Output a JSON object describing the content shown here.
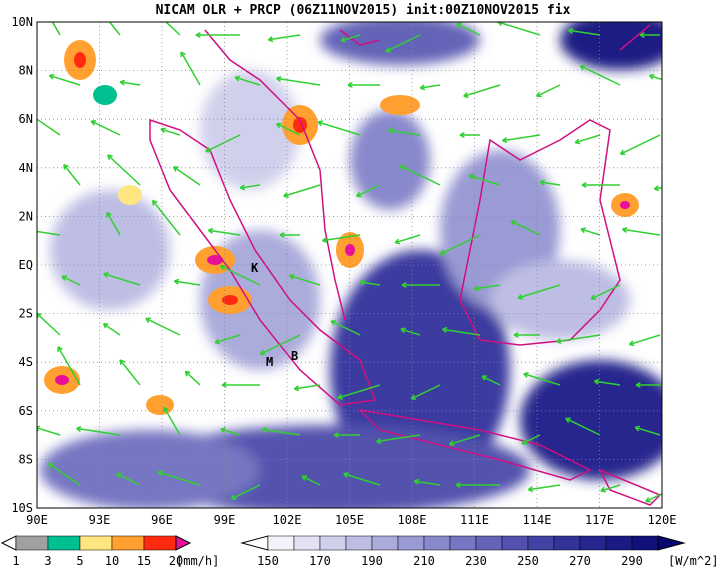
{
  "title": "NICAM OLR + PRCP (06Z11NOV2015) init:00Z10NOV2015 fix",
  "map": {
    "lat_labels": [
      "10N",
      "8N",
      "6N",
      "4N",
      "2N",
      "EQ",
      "2S",
      "4S",
      "6S",
      "8S",
      "10S"
    ],
    "lon_labels": [
      "90E",
      "93E",
      "96E",
      "99E",
      "102E",
      "105E",
      "108E",
      "111E",
      "114E",
      "117E",
      "120E"
    ],
    "places": [
      "K",
      "M",
      "B"
    ]
  },
  "precip_colorbar": {
    "unit": "[mm/h]",
    "labels": [
      1,
      3,
      5,
      10,
      15,
      20
    ],
    "colors": [
      "#ffffff",
      "#a0a0a0",
      "#00c090",
      "#ffe680",
      "#ffa030",
      "#ff2a10",
      "#e8109a"
    ]
  },
  "olr_colorbar": {
    "unit": "[W/m^2]",
    "labels": [
      150,
      170,
      190,
      210,
      230,
      250,
      270,
      290
    ],
    "colors": [
      "#ffffff",
      "#f2f2fa",
      "#e2e2f2",
      "#d0d0ec",
      "#bebee4",
      "#acacdc",
      "#9a9ad4",
      "#8888cc",
      "#7676c2",
      "#6464b8",
      "#5252ae",
      "#4242a4",
      "#33339a",
      "#26268e",
      "#1a1a84",
      "#10107a",
      "#080870"
    ]
  }
}
